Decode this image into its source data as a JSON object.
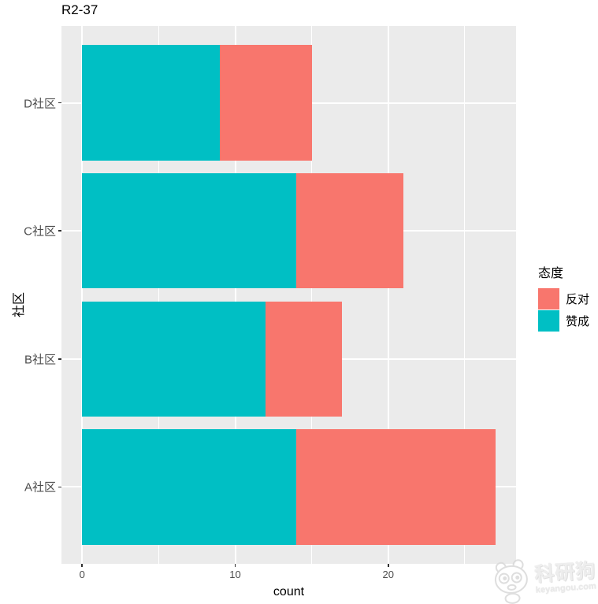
{
  "title": "R2-37",
  "axes": {
    "x_title": "count",
    "y_title": "社区"
  },
  "legend": {
    "title": "态度",
    "entries": [
      {
        "label": "反对",
        "color": "#F8766D"
      },
      {
        "label": "赞成",
        "color": "#00BFC4"
      }
    ]
  },
  "watermark": {
    "name": "科研狗",
    "domain": "keyangou.com"
  },
  "chart_data": {
    "type": "bar",
    "orientation": "horizontal",
    "stacked": true,
    "title": "R2-37",
    "xlabel": "count",
    "ylabel": "社区",
    "categories_top_to_bottom": [
      "D社区",
      "C社区",
      "B社区",
      "A社区"
    ],
    "series": [
      {
        "name": "赞成",
        "color": "#00BFC4",
        "values": [
          9,
          14,
          12,
          14
        ]
      },
      {
        "name": "反对",
        "color": "#F8766D",
        "values": [
          6,
          7,
          5,
          13
        ]
      }
    ],
    "stack_totals": [
      15,
      21,
      17,
      27
    ],
    "xlim": [
      -1.35,
      28.35
    ],
    "x_major_ticks": [
      0,
      10,
      20
    ],
    "x_minor_ticks": [
      5,
      15,
      25
    ],
    "legend_title": "态度",
    "legend_position": "right",
    "panel_background": "#EBEBEB",
    "gridline_color": "#FFFFFF",
    "grid": "major-and-minor"
  }
}
